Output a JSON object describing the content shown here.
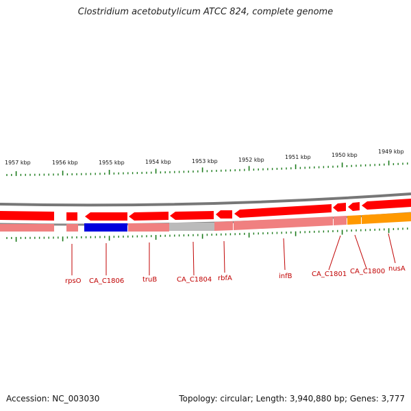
{
  "title": "Clostridium acetobutylicum ATCC 824, complete genome",
  "accession": "Accession: NC_003030",
  "summary": "Topology: circular; Length: 3,940,880 bp; Genes: 3,777",
  "colors": {
    "gene_red": "#ff0000",
    "gene_light_red": "#f08080",
    "blue": "#0000dd",
    "grey": "#bbbbbb",
    "orange": "#ff9900",
    "tick_green": "#1a7a1a",
    "label_red": "#c00000"
  },
  "scale_labels": [
    "1957 kbp",
    "1956 kbp",
    "1955 kbp",
    "1954 kbp",
    "1953 kbp",
    "1952 kbp",
    "1951 kbp",
    "1950 kbp",
    "1949 kbp"
  ],
  "gene_labels": [
    "rpsO",
    "CA_C1806",
    "truB",
    "CA_C1804",
    "rbfA",
    "infB",
    "CA_C1801",
    "CA_C1800",
    "nusA"
  ]
}
